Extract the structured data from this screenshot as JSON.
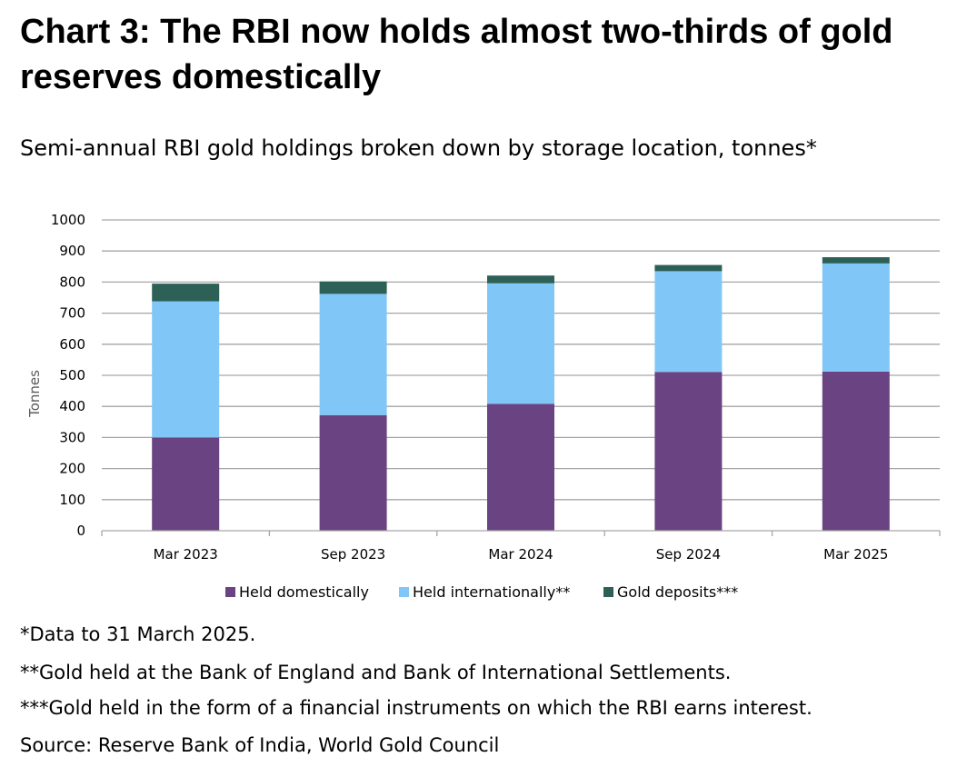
{
  "header": {
    "title": "Chart 3: The RBI now holds almost two-thirds of gold reserves domestically",
    "subtitle": "Semi-annual RBI gold holdings broken down by storage location, tonnes*"
  },
  "footer": {
    "note1": "*Data to 31 March 2025.",
    "note2": "**Gold held at the Bank of England and Bank of International Settlements.",
    "note3": "***Gold held in the form of a financial instruments on which the RBI earns interest.",
    "source": "Source: Reserve Bank of India, World Gold Council"
  },
  "chart_data": {
    "type": "bar",
    "stacked": true,
    "categories": [
      "Mar 2023",
      "Sep 2023",
      "Mar 2024",
      "Sep 2024",
      "Mar 2025"
    ],
    "series": [
      {
        "name": "Held domestically",
        "color": "#6a4382",
        "values": [
          300,
          372,
          408,
          511,
          512
        ]
      },
      {
        "name": "Held internationally**",
        "color": "#80c7f7",
        "values": [
          438,
          390,
          388,
          324,
          348
        ]
      },
      {
        "name": "Gold deposits***",
        "color": "#2d6157",
        "values": [
          57,
          40,
          25,
          20,
          20
        ]
      }
    ],
    "ylabel": "Tonnes",
    "ylim": [
      0,
      1000
    ],
    "yticks": [
      0,
      100,
      200,
      300,
      400,
      500,
      600,
      700,
      800,
      900,
      1000
    ],
    "grid": true,
    "legend_position": "bottom"
  }
}
